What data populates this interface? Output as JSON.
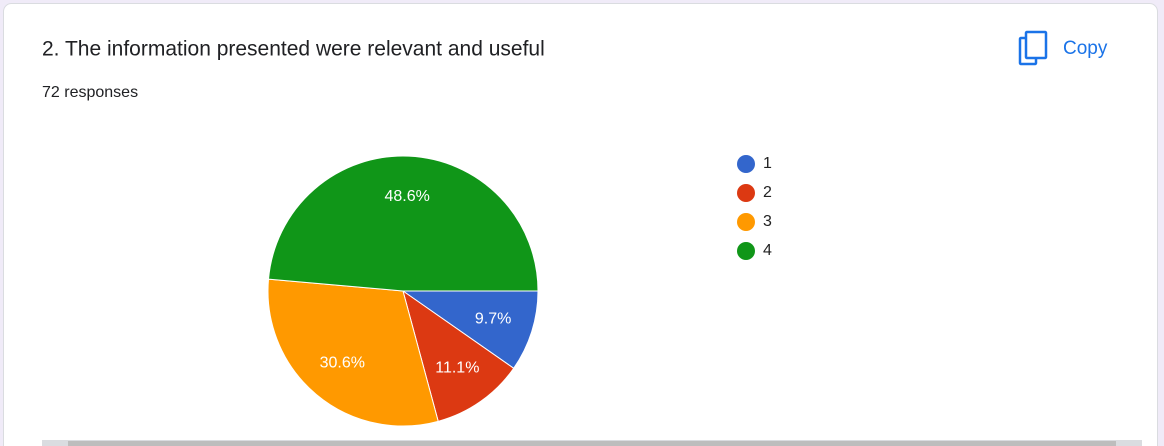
{
  "chart_data": {
    "type": "pie",
    "title": "2. The information presented were relevant and useful",
    "subtitle": "72 responses",
    "categories": [
      "1",
      "2",
      "3",
      "4"
    ],
    "values": [
      9.7,
      11.1,
      30.6,
      48.6
    ],
    "value_labels": [
      "9.7%",
      "11.1%",
      "30.6%",
      "48.6%"
    ],
    "colors": [
      "#3366cc",
      "#dc3912",
      "#ff9900",
      "#109618"
    ],
    "legend": "right"
  },
  "toolbar": {
    "copy": "Copy"
  }
}
